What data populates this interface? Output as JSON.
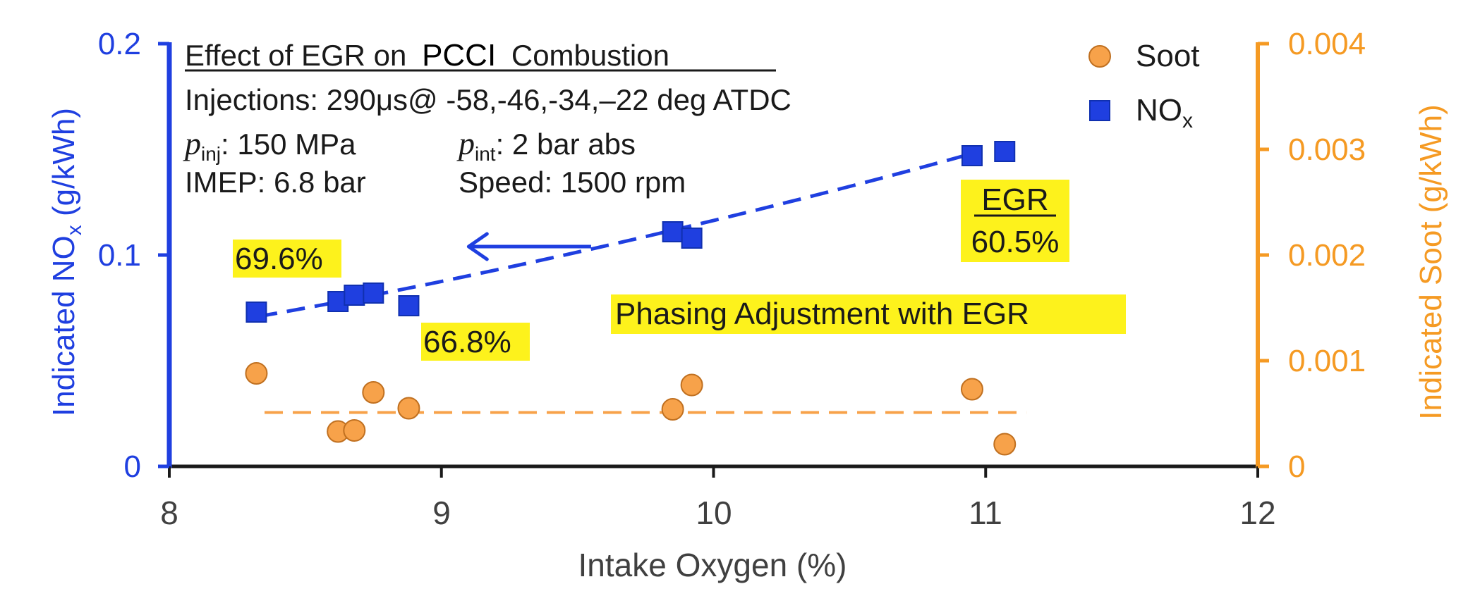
{
  "chart_data": {
    "type": "scatter",
    "title": "Effect of EGR on PCCI Combustion",
    "title_parts": {
      "before": "Effect of EGR on ",
      "boxed": "PCCI",
      "after": " Combustion"
    },
    "xlabel": "Intake Oxygen (%)",
    "xlim": [
      8,
      12
    ],
    "xticks": [
      8,
      9,
      10,
      11,
      12
    ],
    "y_left": {
      "label": "Indicated NOx (g/kWh)",
      "label_main": "Indicated NO",
      "label_sub": "x",
      "label_tail": " (g/kWh)",
      "lim": [
        0,
        0.2
      ],
      "ticks": [
        "0",
        "0.1",
        "0.2"
      ],
      "color": "#1f3fe0"
    },
    "y_right": {
      "label": "Indicated Soot (g/kWh)",
      "lim": [
        0,
        0.004
      ],
      "ticks": [
        "0",
        "0.001",
        "0.002",
        "0.003",
        "0.004"
      ],
      "color": "#f59a23"
    },
    "series": [
      {
        "name": "Soot",
        "marker": "circle",
        "axis": "right",
        "color": "#f7a24a",
        "x": [
          8.32,
          8.62,
          8.68,
          8.75,
          8.88,
          9.85,
          9.92,
          10.95,
          11.07
        ],
        "y": [
          0.00088,
          0.00033,
          0.00034,
          0.0007,
          0.00055,
          0.00054,
          0.00077,
          0.00073,
          0.00021
        ],
        "trend": {
          "style": "dashed",
          "x": [
            8.35,
            11.15
          ],
          "y": [
            0.00051,
            0.00051
          ]
        }
      },
      {
        "name": "NOx",
        "legend_main": "NO",
        "legend_sub": "x",
        "marker": "square",
        "axis": "left",
        "color": "#1f3fe0",
        "x": [
          8.32,
          8.62,
          8.68,
          8.75,
          8.88,
          9.85,
          9.92,
          10.95,
          11.07
        ],
        "y": [
          0.073,
          0.078,
          0.081,
          0.082,
          0.076,
          0.111,
          0.108,
          0.147,
          0.149
        ],
        "trend": {
          "style": "dashed",
          "curve": "quadratic",
          "x": [
            8.33,
            9.0,
            10.0,
            10.95
          ],
          "y": [
            0.071,
            0.086,
            0.114,
            0.148
          ]
        }
      }
    ],
    "info_lines": [
      {
        "main": "Injections: 290μs@ -58,-46,-34,–22 deg ATDC"
      },
      {
        "p1": "p",
        "p1_sub": "inj",
        "p1_val": ": 150 MPa",
        "p2": "p",
        "p2_sub": "int",
        "p2_val": ": 2 bar abs"
      },
      {
        "c1": "IMEP: 6.8 bar",
        "c2": "Speed: 1500 rpm"
      }
    ],
    "annotations": [
      {
        "text": "69.6%",
        "highlight": "#fdf21c"
      },
      {
        "text": "66.8%",
        "highlight": "#fdf21c"
      },
      {
        "text": "EGR",
        "underline": true,
        "highlight": "#fdf21c"
      },
      {
        "text": "60.5%",
        "highlight": "#fdf21c"
      },
      {
        "text": "Phasing Adjustment with EGR",
        "highlight": "#fdf21c"
      }
    ],
    "arrow": {
      "direction": "left",
      "from_x": 9.55,
      "to_x": 9.1,
      "color": "#1f3fe0"
    },
    "legend": {
      "position": "top-right"
    }
  }
}
